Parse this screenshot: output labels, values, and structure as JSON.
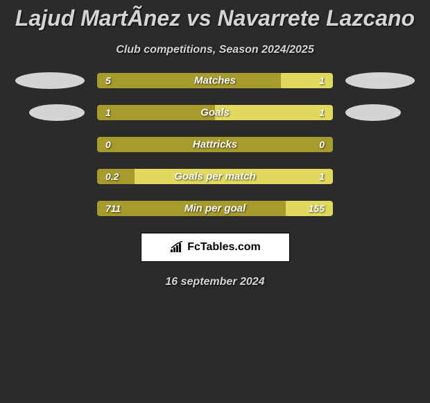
{
  "title": "Lajud MartÃ­nez vs Navarrete Lazcano",
  "subtitle": "Club competitions, Season 2024/2025",
  "date": "16 september 2024",
  "attribution": "FcTables.com",
  "background_color": "#2b2b2b",
  "text_color": "#d4d4d4",
  "ellipse_color": "#d4d4d4",
  "bar_colors": {
    "left": "#a89b2e",
    "right": "#e0d95e"
  },
  "stats": [
    {
      "label": "Matches",
      "left_value": "5",
      "right_value": "1",
      "left_pct": 78,
      "show_ellipses": true
    },
    {
      "label": "Goals",
      "left_value": "1",
      "right_value": "1",
      "left_pct": 50,
      "show_ellipses": true
    },
    {
      "label": "Hattricks",
      "left_value": "0",
      "right_value": "0",
      "left_pct": 100,
      "show_ellipses": false
    },
    {
      "label": "Goals per match",
      "left_value": "0.2",
      "right_value": "1",
      "left_pct": 16,
      "show_ellipses": false
    },
    {
      "label": "Min per goal",
      "left_value": "711",
      "right_value": "155",
      "left_pct": 80,
      "show_ellipses": false
    }
  ]
}
